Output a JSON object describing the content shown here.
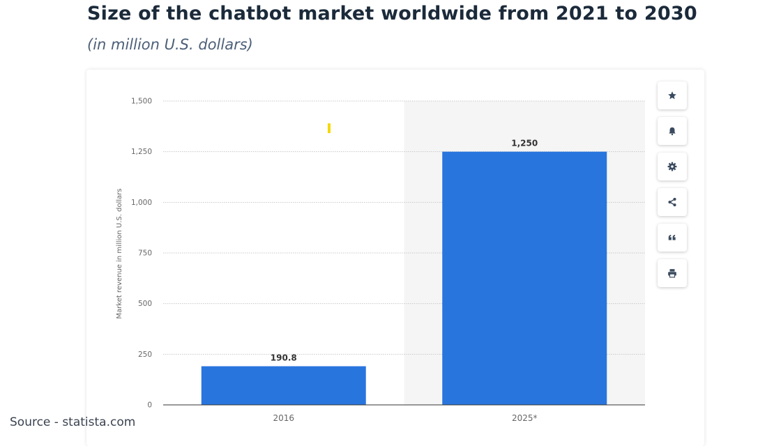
{
  "header": {
    "title": "Size of the chatbot market worldwide from 2021 to 2030",
    "subtitle": "(in million U.S. dollars)"
  },
  "toolbar": {
    "buttons": [
      {
        "icon": "star-icon",
        "name": "favorite-button"
      },
      {
        "icon": "bell-icon",
        "name": "notification-button"
      },
      {
        "icon": "gear-icon",
        "name": "settings-button"
      },
      {
        "icon": "share-icon",
        "name": "share-button"
      },
      {
        "icon": "quote-icon",
        "name": "citation-button"
      },
      {
        "icon": "print-icon",
        "name": "print-button"
      }
    ]
  },
  "footer": {
    "source": "Source - statista.com"
  },
  "colors": {
    "bar": "#2875de",
    "grid": "#c8c8c8",
    "forecast_band": "#f5f5f5",
    "marker": "#f5d90a"
  },
  "chart_data": {
    "type": "bar",
    "title": "",
    "xlabel": "",
    "ylabel": "Market revenue in million U.S. dollars",
    "categories": [
      "2016",
      "2025*"
    ],
    "values": [
      190.8,
      1250
    ],
    "value_labels": [
      "190.8",
      "1,250"
    ],
    "ylim": [
      0,
      1500
    ],
    "yticks": [
      0,
      250,
      500,
      750,
      1000,
      1250,
      1500
    ],
    "ytick_labels": [
      "0",
      "250",
      "500",
      "750",
      "1,000",
      "1,250",
      "1,500"
    ],
    "grid": true,
    "forecast_shading": "2025*"
  }
}
